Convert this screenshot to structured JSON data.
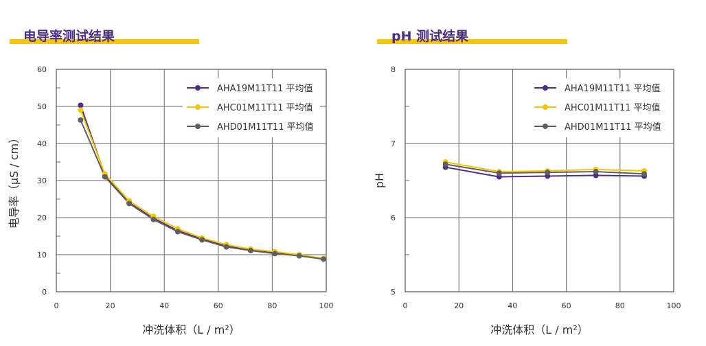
{
  "chart_data": [
    {
      "type": "line",
      "title": "电导率测试结果",
      "xlabel": "冲洗体积（L / m²）",
      "ylabel": "电导率（μS / cm）",
      "xlim": [
        0,
        100
      ],
      "ylim": [
        0,
        60
      ],
      "xticks": [
        0,
        20,
        40,
        60,
        80,
        100
      ],
      "yticks": [
        0,
        10,
        20,
        30,
        40,
        50,
        60
      ],
      "legend_position": "top-right",
      "series": [
        {
          "name": "AHA19M11T11 平均值",
          "color": "#4b2d8a",
          "x": [
            9,
            18,
            27,
            36,
            45,
            54,
            63,
            72,
            81,
            90,
            99
          ],
          "y": [
            50.3,
            31.5,
            24.0,
            19.8,
            16.5,
            14.2,
            12.3,
            11.2,
            10.5,
            9.8,
            8.9
          ]
        },
        {
          "name": "AHC01M11T11 平均值",
          "color": "#f7c600",
          "x": [
            9,
            18,
            27,
            36,
            45,
            54,
            63,
            72,
            81,
            90,
            99
          ],
          "y": [
            49.0,
            31.8,
            24.5,
            20.3,
            17.0,
            14.5,
            12.7,
            11.5,
            10.8,
            10.0,
            9.0
          ]
        },
        {
          "name": "AHD01M11T11 平均值",
          "color": "#606060",
          "x": [
            9,
            18,
            27,
            36,
            45,
            54,
            63,
            72,
            81,
            90,
            99
          ],
          "y": [
            46.3,
            31.0,
            23.8,
            19.5,
            16.2,
            14.0,
            12.1,
            11.1,
            10.3,
            9.7,
            8.8
          ]
        }
      ]
    },
    {
      "type": "line",
      "title": "pH 测试结果",
      "xlabel": "冲洗体积（L / m²）",
      "ylabel": "pH",
      "xlim": [
        0,
        100
      ],
      "ylim": [
        5,
        8
      ],
      "xticks": [
        0,
        20,
        40,
        60,
        80,
        100
      ],
      "yticks": [
        5,
        6,
        7,
        8
      ],
      "legend_position": "top-right",
      "series": [
        {
          "name": "AHA19M11T11 平均值",
          "color": "#4b2d8a",
          "x": [
            15,
            35,
            53,
            71,
            89
          ],
          "y": [
            6.68,
            6.55,
            6.56,
            6.57,
            6.56
          ]
        },
        {
          "name": "AHC01M11T11 平均值",
          "color": "#f7c600",
          "x": [
            15,
            35,
            53,
            71,
            89
          ],
          "y": [
            6.75,
            6.62,
            6.63,
            6.65,
            6.63
          ]
        },
        {
          "name": "AHD01M11T11 平均值",
          "color": "#606060",
          "x": [
            15,
            35,
            53,
            71,
            89
          ],
          "y": [
            6.72,
            6.6,
            6.61,
            6.62,
            6.59
          ]
        }
      ]
    }
  ]
}
